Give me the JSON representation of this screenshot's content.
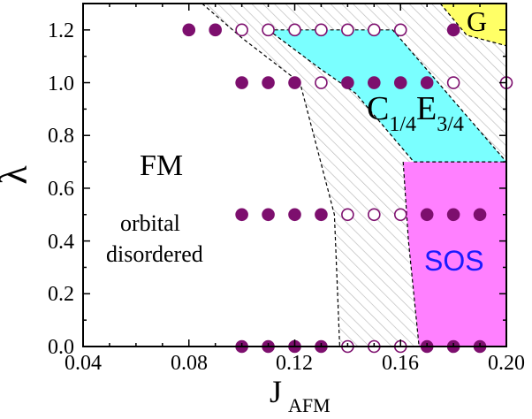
{
  "chart_data": {
    "type": "scatter",
    "title": "",
    "xlabel": "J",
    "xlabel_sub": "AFM",
    "ylabel": "λ",
    "xlim": [
      0.04,
      0.2
    ],
    "ylim": [
      0.0,
      1.3
    ],
    "x_ticks": [
      0.04,
      0.08,
      0.12,
      0.16,
      0.2
    ],
    "x_tick_labels": [
      "0.04",
      "0.08",
      "0.12",
      "0.16",
      "0.20"
    ],
    "y_ticks": [
      0.0,
      0.2,
      0.4,
      0.6,
      0.8,
      1.0,
      1.2
    ],
    "y_tick_labels": [
      "0.0",
      "0.2",
      "0.4",
      "0.6",
      "0.8",
      "1.0",
      "1.2"
    ],
    "grid": false,
    "colors": {
      "filled_marker": "#7d0f6e",
      "open_marker": "#7d0f6e",
      "G_region": "#ffff66",
      "CE_region": "#7affff",
      "SOS_region": "#ff80ff",
      "hatch": "#b8b8b8",
      "boundary": "#000000"
    },
    "regions": [
      {
        "name": "G",
        "label": "G",
        "color": "#ffff66",
        "polygon": [
          [
            0.175,
            1.3
          ],
          [
            0.2,
            1.3
          ],
          [
            0.2,
            1.14
          ],
          [
            0.185,
            1.18
          ]
        ]
      },
      {
        "name": "C1/4E3/4",
        "label_main": "C",
        "label_sub1": "1/4",
        "label_mid": "E",
        "label_sub2": "3/4",
        "color": "#7affff",
        "polygon": [
          [
            0.11,
            1.2
          ],
          [
            0.157,
            1.2
          ],
          [
            0.2,
            0.7
          ],
          [
            0.165,
            0.7
          ],
          [
            0.143,
            0.96
          ],
          [
            0.13,
            1.05
          ]
        ]
      },
      {
        "name": "SOS",
        "label": "SOS",
        "label_color": "#1a1aff",
        "color": "#ff80ff",
        "polygon": [
          [
            0.161,
            0.7
          ],
          [
            0.2,
            0.7
          ],
          [
            0.2,
            0.0
          ],
          [
            0.167,
            0.0
          ],
          [
            0.163,
            0.4
          ]
        ]
      },
      {
        "name": "FM",
        "label": "FM",
        "note_line1": "orbital",
        "note_line2": "disordered"
      }
    ],
    "hatched_region": [
      [
        0.085,
        1.3
      ],
      [
        0.175,
        1.3
      ],
      [
        0.2,
        1.16
      ],
      [
        0.2,
        0.7
      ],
      [
        0.161,
        0.7
      ],
      [
        0.167,
        0.0
      ],
      [
        0.137,
        0.0
      ],
      [
        0.135,
        0.5
      ],
      [
        0.122,
        1.0
      ],
      [
        0.1,
        1.17
      ]
    ],
    "boundaries": [
      [
        [
          0.085,
          1.3
        ],
        [
          0.1,
          1.17
        ],
        [
          0.122,
          1.0
        ],
        [
          0.135,
          0.5
        ],
        [
          0.137,
          0.0
        ]
      ],
      [
        [
          0.11,
          1.2
        ],
        [
          0.157,
          1.2
        ],
        [
          0.2,
          0.7
        ]
      ],
      [
        [
          0.11,
          1.2
        ],
        [
          0.13,
          1.05
        ],
        [
          0.143,
          0.96
        ],
        [
          0.165,
          0.7
        ]
      ],
      [
        [
          0.165,
          0.7
        ],
        [
          0.2,
          0.7
        ]
      ],
      [
        [
          0.161,
          0.7
        ],
        [
          0.163,
          0.4
        ],
        [
          0.167,
          0.0
        ]
      ],
      [
        [
          0.175,
          1.3
        ],
        [
          0.185,
          1.18
        ],
        [
          0.2,
          1.14
        ]
      ]
    ],
    "series": [
      {
        "marker": "filled",
        "points": [
          [
            0.08,
            1.2
          ],
          [
            0.09,
            1.2
          ],
          [
            0.18,
            1.2
          ],
          [
            0.1,
            1.0
          ],
          [
            0.11,
            1.0
          ],
          [
            0.12,
            1.0
          ],
          [
            0.14,
            1.0
          ],
          [
            0.15,
            1.0
          ],
          [
            0.16,
            1.0
          ],
          [
            0.17,
            1.0
          ],
          [
            0.1,
            0.5
          ],
          [
            0.11,
            0.5
          ],
          [
            0.12,
            0.5
          ],
          [
            0.13,
            0.5
          ],
          [
            0.17,
            0.5
          ],
          [
            0.18,
            0.5
          ],
          [
            0.19,
            0.5
          ],
          [
            0.1,
            0.0
          ],
          [
            0.11,
            0.0
          ],
          [
            0.12,
            0.0
          ],
          [
            0.13,
            0.0
          ],
          [
            0.17,
            0.0
          ],
          [
            0.18,
            0.0
          ],
          [
            0.19,
            0.0
          ]
        ]
      },
      {
        "marker": "open",
        "points": [
          [
            0.1,
            1.2
          ],
          [
            0.11,
            1.2
          ],
          [
            0.12,
            1.2
          ],
          [
            0.13,
            1.2
          ],
          [
            0.14,
            1.2
          ],
          [
            0.15,
            1.2
          ],
          [
            0.16,
            1.2
          ],
          [
            0.13,
            1.0
          ],
          [
            0.18,
            1.0
          ],
          [
            0.2,
            1.0
          ],
          [
            0.14,
            0.5
          ],
          [
            0.15,
            0.5
          ],
          [
            0.16,
            0.5
          ],
          [
            0.14,
            0.0
          ],
          [
            0.15,
            0.0
          ],
          [
            0.16,
            0.0
          ]
        ]
      }
    ]
  }
}
